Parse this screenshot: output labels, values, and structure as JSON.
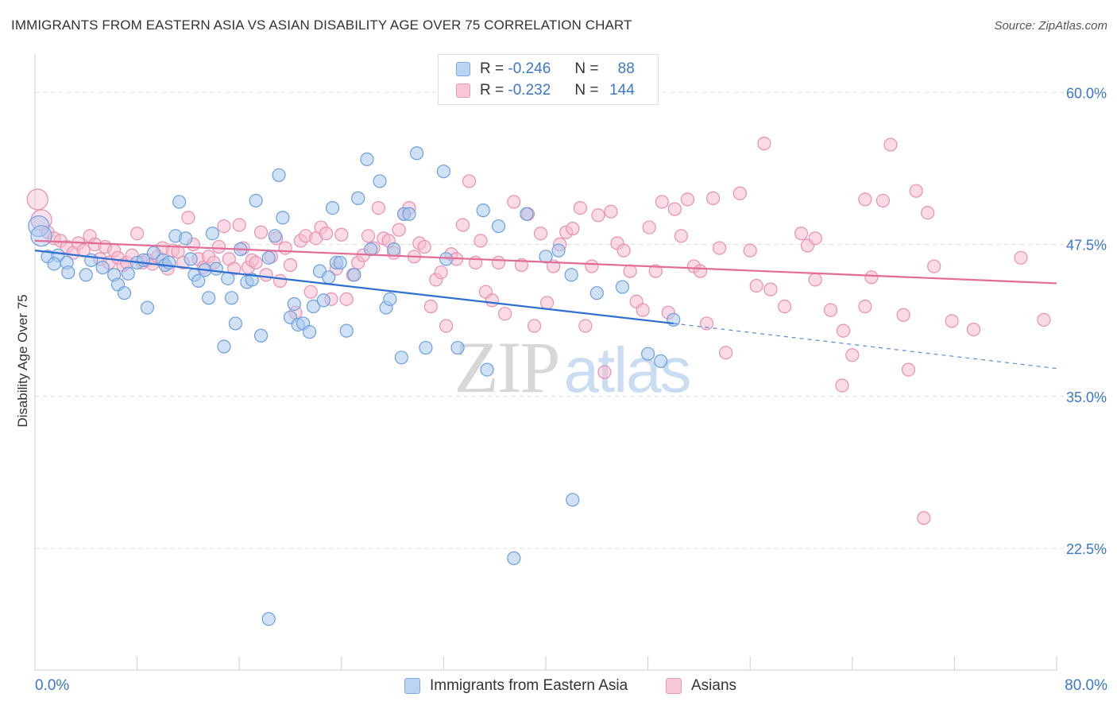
{
  "title": "IMMIGRANTS FROM EASTERN ASIA VS ASIAN DISABILITY AGE OVER 75 CORRELATION CHART",
  "source": "Source: ZipAtlas.com",
  "legend": {
    "r_label": "R =",
    "n_label": "N =",
    "series1": {
      "r": "-0.246",
      "n": "88"
    },
    "series2": {
      "r": "-0.232",
      "n": "144"
    }
  },
  "bottom_legend": {
    "series1": "Immigrants from Eastern Asia",
    "series2": "Asians"
  },
  "colors": {
    "blue_fill": "#a9c8ef",
    "blue_stroke": "#6a9fdf",
    "blue_line": "#2e6fd1",
    "pink_fill": "#f6bcd0",
    "pink_stroke": "#ea8fb0",
    "pink_line": "#e26c96",
    "axis_label": "#3a78c9"
  },
  "chart_data": {
    "type": "scatter",
    "title": "IMMIGRANTS FROM EASTERN ASIA VS ASIAN DISABILITY AGE OVER 75 CORRELATION CHART",
    "xlabel": "",
    "ylabel": "Disability Age Over 75",
    "xlim": [
      0,
      80
    ],
    "ylim": [
      12.5,
      62.5
    ],
    "x_tick_labels": [
      "0.0%",
      "80.0%"
    ],
    "y_ticks": [
      22.5,
      35.0,
      47.5,
      60.0
    ],
    "y_tick_labels": [
      "22.5%",
      "35.0%",
      "47.5%",
      "60.0%"
    ],
    "grid": "horizontal dashed",
    "watermark": "ZIPatlas",
    "series": [
      {
        "name": "Immigrants from Eastern Asia",
        "color": "#a9c8ef",
        "r": -0.246,
        "n": 88,
        "trend": {
          "x0": 0,
          "y0": 47.0,
          "x1": 50,
          "y1": 41.0,
          "dashed_to_x": 80,
          "dashed_to_y": 37.3
        },
        "points": [
          [
            0.3,
            49.0
          ],
          [
            0.5,
            48.2
          ],
          [
            1.0,
            46.5
          ],
          [
            1.8,
            46.6
          ],
          [
            2.5,
            46.0
          ],
          [
            1.5,
            45.9
          ],
          [
            2.6,
            45.2
          ],
          [
            4.0,
            45.0
          ],
          [
            4.4,
            46.2
          ],
          [
            5.3,
            45.6
          ],
          [
            6.2,
            45.0
          ],
          [
            6.5,
            44.2
          ],
          [
            7.0,
            43.5
          ],
          [
            7.3,
            45.1
          ],
          [
            8.0,
            46.0
          ],
          [
            8.5,
            46.2
          ],
          [
            8.8,
            42.3
          ],
          [
            9.3,
            46.8
          ],
          [
            10.0,
            46.2
          ],
          [
            10.2,
            45.8
          ],
          [
            10.5,
            46.0
          ],
          [
            11.0,
            48.2
          ],
          [
            11.3,
            51.0
          ],
          [
            11.8,
            48.0
          ],
          [
            12.2,
            46.3
          ],
          [
            12.5,
            45.0
          ],
          [
            12.8,
            44.5
          ],
          [
            13.3,
            45.4
          ],
          [
            13.6,
            43.1
          ],
          [
            13.9,
            48.4
          ],
          [
            14.2,
            45.5
          ],
          [
            14.8,
            39.1
          ],
          [
            15.1,
            44.7
          ],
          [
            15.4,
            43.1
          ],
          [
            15.7,
            41.0
          ],
          [
            16.1,
            47.1
          ],
          [
            16.6,
            44.4
          ],
          [
            17.0,
            44.6
          ],
          [
            17.3,
            51.1
          ],
          [
            17.7,
            40.0
          ],
          [
            18.3,
            46.4
          ],
          [
            18.8,
            48.2
          ],
          [
            19.1,
            53.2
          ],
          [
            19.4,
            49.7
          ],
          [
            20.0,
            41.5
          ],
          [
            20.3,
            42.6
          ],
          [
            20.6,
            40.9
          ],
          [
            21.0,
            41.0
          ],
          [
            21.5,
            40.3
          ],
          [
            21.8,
            42.4
          ],
          [
            22.3,
            45.3
          ],
          [
            22.6,
            42.9
          ],
          [
            23.0,
            44.8
          ],
          [
            23.3,
            50.5
          ],
          [
            23.6,
            46.0
          ],
          [
            24.4,
            40.4
          ],
          [
            25.0,
            45.0
          ],
          [
            25.3,
            51.3
          ],
          [
            26.0,
            54.5
          ],
          [
            26.3,
            47.1
          ],
          [
            27.0,
            52.7
          ],
          [
            27.5,
            42.3
          ],
          [
            27.8,
            43.0
          ],
          [
            28.1,
            47.1
          ],
          [
            28.7,
            38.2
          ],
          [
            28.9,
            50.0
          ],
          [
            29.3,
            50.0
          ],
          [
            29.9,
            55.0
          ],
          [
            30.6,
            39.0
          ],
          [
            32.0,
            53.5
          ],
          [
            32.2,
            46.3
          ],
          [
            33.1,
            39.0
          ],
          [
            35.1,
            50.3
          ],
          [
            35.4,
            37.2
          ],
          [
            36.3,
            49.0
          ],
          [
            42.1,
            26.5
          ],
          [
            37.5,
            21.7
          ],
          [
            18.3,
            16.7
          ],
          [
            38.5,
            50.0
          ],
          [
            40.0,
            46.5
          ],
          [
            41.0,
            47.0
          ],
          [
            42.0,
            45.0
          ],
          [
            44.0,
            43.5
          ],
          [
            46.0,
            44.0
          ],
          [
            48.0,
            38.5
          ],
          [
            49.0,
            37.9
          ],
          [
            50.0,
            41.3
          ],
          [
            23.9,
            46.0
          ]
        ]
      },
      {
        "name": "Asians",
        "color": "#f6bcd0",
        "r": -0.232,
        "n": 144,
        "trend": {
          "x0": 0,
          "y0": 47.8,
          "x1": 80,
          "y1": 44.3
        },
        "points": [
          [
            0.2,
            51.2
          ],
          [
            0.5,
            49.5
          ],
          [
            1.0,
            48.5
          ],
          [
            1.5,
            48.0
          ],
          [
            2.0,
            47.8
          ],
          [
            2.5,
            47.3
          ],
          [
            3.0,
            46.8
          ],
          [
            3.4,
            47.6
          ],
          [
            3.8,
            47.0
          ],
          [
            4.3,
            48.2
          ],
          [
            4.7,
            47.5
          ],
          [
            5.1,
            46.3
          ],
          [
            5.5,
            47.3
          ],
          [
            5.8,
            46.0
          ],
          [
            6.2,
            47.0
          ],
          [
            6.5,
            46.4
          ],
          [
            6.9,
            45.8
          ],
          [
            7.2,
            46.0
          ],
          [
            7.6,
            46.6
          ],
          [
            8.0,
            48.4
          ],
          [
            8.4,
            46.0
          ],
          [
            8.8,
            46.2
          ],
          [
            9.2,
            45.9
          ],
          [
            9.6,
            46.5
          ],
          [
            10.0,
            47.2
          ],
          [
            10.4,
            45.5
          ],
          [
            10.8,
            47.0
          ],
          [
            11.2,
            46.9
          ],
          [
            11.6,
            46.0
          ],
          [
            12.0,
            49.7
          ],
          [
            12.4,
            47.5
          ],
          [
            12.8,
            46.3
          ],
          [
            13.2,
            45.6
          ],
          [
            13.6,
            46.5
          ],
          [
            14.0,
            46.0
          ],
          [
            14.4,
            47.3
          ],
          [
            14.8,
            49.0
          ],
          [
            15.2,
            46.3
          ],
          [
            15.6,
            45.5
          ],
          [
            16.0,
            49.1
          ],
          [
            16.3,
            47.2
          ],
          [
            16.7,
            45.6
          ],
          [
            17.0,
            46.2
          ],
          [
            17.3,
            46.0
          ],
          [
            17.7,
            48.5
          ],
          [
            18.1,
            45.0
          ],
          [
            18.5,
            46.5
          ],
          [
            18.9,
            48.0
          ],
          [
            19.2,
            44.5
          ],
          [
            19.6,
            47.2
          ],
          [
            20.0,
            45.8
          ],
          [
            20.4,
            41.9
          ],
          [
            20.8,
            47.8
          ],
          [
            21.2,
            48.2
          ],
          [
            21.6,
            43.6
          ],
          [
            22.0,
            48.0
          ],
          [
            22.4,
            48.9
          ],
          [
            22.8,
            48.4
          ],
          [
            23.2,
            43.0
          ],
          [
            23.6,
            45.5
          ],
          [
            24.0,
            48.3
          ],
          [
            24.4,
            43.0
          ],
          [
            24.9,
            45.0
          ],
          [
            25.3,
            46.0
          ],
          [
            25.7,
            46.6
          ],
          [
            26.1,
            48.2
          ],
          [
            26.5,
            47.2
          ],
          [
            26.9,
            50.5
          ],
          [
            27.3,
            48.0
          ],
          [
            27.7,
            47.8
          ],
          [
            28.1,
            46.8
          ],
          [
            28.5,
            48.7
          ],
          [
            28.9,
            50.0
          ],
          [
            29.3,
            50.5
          ],
          [
            29.7,
            46.5
          ],
          [
            30.1,
            47.6
          ],
          [
            30.5,
            47.3
          ],
          [
            31.0,
            42.4
          ],
          [
            31.4,
            44.6
          ],
          [
            31.8,
            45.2
          ],
          [
            32.2,
            40.8
          ],
          [
            32.6,
            46.7
          ],
          [
            33.0,
            46.3
          ],
          [
            33.5,
            49.1
          ],
          [
            34.0,
            52.7
          ],
          [
            34.5,
            46.0
          ],
          [
            34.9,
            47.8
          ],
          [
            35.3,
            43.6
          ],
          [
            35.8,
            42.9
          ],
          [
            36.3,
            46.0
          ],
          [
            36.8,
            41.8
          ],
          [
            37.5,
            51.0
          ],
          [
            38.1,
            45.8
          ],
          [
            38.6,
            50.0
          ],
          [
            39.1,
            40.8
          ],
          [
            39.6,
            48.4
          ],
          [
            40.1,
            42.7
          ],
          [
            40.6,
            45.7
          ],
          [
            41.1,
            47.5
          ],
          [
            41.6,
            48.5
          ],
          [
            42.1,
            48.8
          ],
          [
            42.7,
            50.5
          ],
          [
            43.1,
            40.8
          ],
          [
            43.6,
            45.7
          ],
          [
            44.1,
            49.9
          ],
          [
            44.6,
            37.0
          ],
          [
            45.1,
            50.2
          ],
          [
            45.6,
            47.6
          ],
          [
            46.1,
            47.0
          ],
          [
            46.6,
            45.3
          ],
          [
            47.1,
            42.8
          ],
          [
            47.6,
            42.1
          ],
          [
            48.1,
            48.9
          ],
          [
            48.6,
            45.3
          ],
          [
            49.1,
            51.0
          ],
          [
            49.6,
            41.9
          ],
          [
            50.1,
            50.4
          ],
          [
            50.6,
            48.2
          ],
          [
            51.1,
            51.2
          ],
          [
            51.6,
            45.7
          ],
          [
            52.1,
            45.3
          ],
          [
            52.6,
            41.0
          ],
          [
            53.1,
            51.3
          ],
          [
            53.6,
            47.2
          ],
          [
            54.1,
            38.6
          ],
          [
            55.2,
            51.7
          ],
          [
            56.0,
            47.0
          ],
          [
            56.5,
            44.1
          ],
          [
            57.1,
            55.8
          ],
          [
            57.6,
            43.8
          ],
          [
            58.7,
            42.4
          ],
          [
            60.0,
            48.4
          ],
          [
            60.5,
            47.4
          ],
          [
            61.1,
            44.6
          ],
          [
            62.3,
            42.1
          ],
          [
            63.3,
            40.4
          ],
          [
            64.0,
            38.4
          ],
          [
            65.0,
            51.2
          ],
          [
            65.5,
            44.8
          ],
          [
            66.4,
            51.1
          ],
          [
            67.0,
            55.7
          ],
          [
            68.0,
            41.7
          ],
          [
            68.4,
            37.2
          ],
          [
            69.0,
            51.9
          ],
          [
            69.9,
            50.1
          ],
          [
            70.4,
            45.7
          ],
          [
            71.8,
            41.2
          ],
          [
            73.5,
            40.5
          ],
          [
            77.2,
            46.4
          ],
          [
            79.0,
            41.3
          ],
          [
            63.2,
            35.9
          ],
          [
            65.0,
            42.4
          ],
          [
            69.6,
            25.0
          ],
          [
            61.1,
            48.0
          ]
        ]
      }
    ]
  }
}
